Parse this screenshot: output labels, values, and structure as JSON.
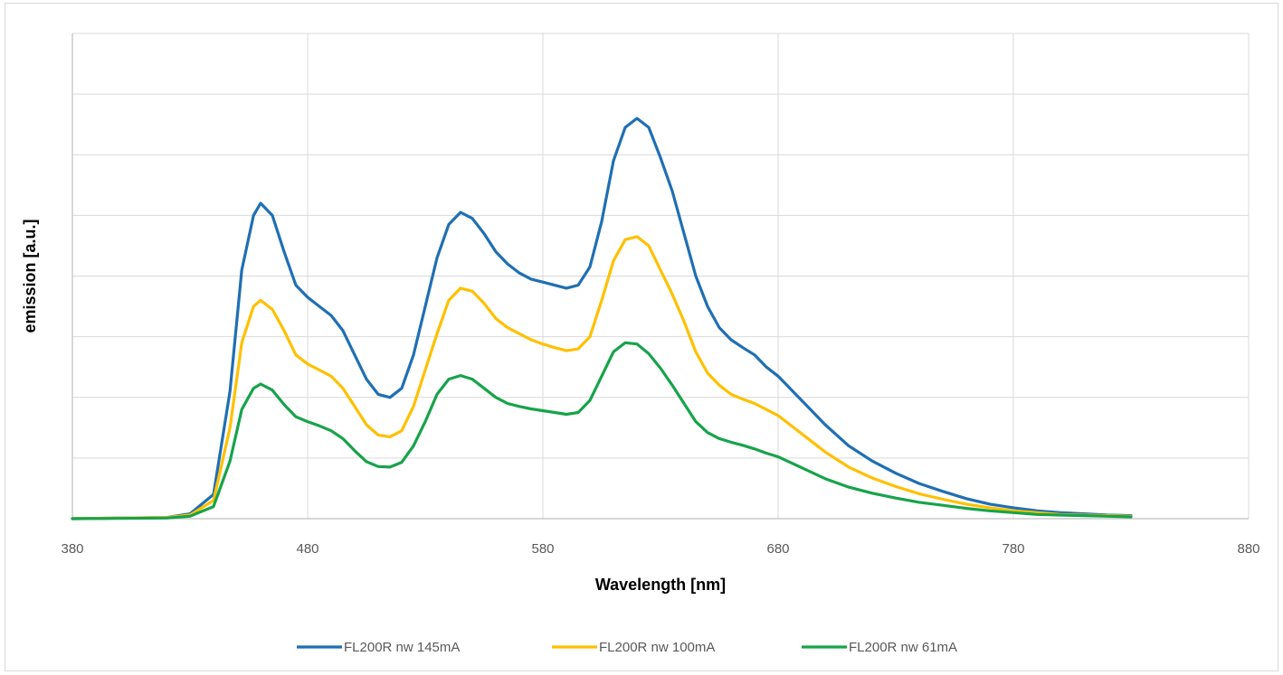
{
  "chart_data": {
    "type": "line",
    "title": "",
    "xlabel": "Wavelength [nm]",
    "ylabel": "emission [a.u.]",
    "xlim": [
      380,
      880
    ],
    "ylim": [
      0,
      8
    ],
    "x_ticks": [
      380,
      480,
      580,
      680,
      780,
      880
    ],
    "x_tick_labels": [
      "380",
      "480",
      "580",
      "680",
      "780",
      "880"
    ],
    "y_gridlines": [
      1,
      2,
      3,
      4,
      5,
      6,
      7,
      8
    ],
    "y_tick_labels_shown": false,
    "grid": true,
    "legend_position": "bottom",
    "series": [
      {
        "name": "FL200R nw 145mA",
        "color": "#1f6fb4",
        "points": [
          [
            380,
            0
          ],
          [
            420,
            0.02
          ],
          [
            430,
            0.08
          ],
          [
            440,
            0.4
          ],
          [
            447,
            2.1
          ],
          [
            452,
            4.1
          ],
          [
            457,
            5.0
          ],
          [
            460,
            5.2
          ],
          [
            465,
            5.0
          ],
          [
            470,
            4.4
          ],
          [
            475,
            3.85
          ],
          [
            480,
            3.65
          ],
          [
            485,
            3.5
          ],
          [
            490,
            3.35
          ],
          [
            495,
            3.1
          ],
          [
            500,
            2.7
          ],
          [
            505,
            2.3
          ],
          [
            510,
            2.05
          ],
          [
            515,
            2.0
          ],
          [
            520,
            2.15
          ],
          [
            525,
            2.7
          ],
          [
            530,
            3.5
          ],
          [
            535,
            4.3
          ],
          [
            540,
            4.85
          ],
          [
            545,
            5.05
          ],
          [
            550,
            4.95
          ],
          [
            555,
            4.7
          ],
          [
            560,
            4.4
          ],
          [
            565,
            4.2
          ],
          [
            570,
            4.05
          ],
          [
            575,
            3.95
          ],
          [
            580,
            3.9
          ],
          [
            585,
            3.85
          ],
          [
            590,
            3.8
          ],
          [
            595,
            3.85
          ],
          [
            600,
            4.15
          ],
          [
            605,
            4.9
          ],
          [
            610,
            5.9
          ],
          [
            615,
            6.45
          ],
          [
            620,
            6.6
          ],
          [
            625,
            6.45
          ],
          [
            630,
            5.95
          ],
          [
            635,
            5.4
          ],
          [
            640,
            4.7
          ],
          [
            645,
            4.0
          ],
          [
            650,
            3.5
          ],
          [
            655,
            3.15
          ],
          [
            660,
            2.95
          ],
          [
            665,
            2.82
          ],
          [
            670,
            2.7
          ],
          [
            675,
            2.5
          ],
          [
            680,
            2.35
          ],
          [
            690,
            1.95
          ],
          [
            700,
            1.55
          ],
          [
            710,
            1.2
          ],
          [
            720,
            0.95
          ],
          [
            730,
            0.75
          ],
          [
            740,
            0.58
          ],
          [
            750,
            0.45
          ],
          [
            760,
            0.33
          ],
          [
            770,
            0.24
          ],
          [
            780,
            0.18
          ],
          [
            790,
            0.13
          ],
          [
            800,
            0.1
          ],
          [
            810,
            0.08
          ],
          [
            820,
            0.06
          ],
          [
            830,
            0.05
          ]
        ]
      },
      {
        "name": "FL200R nw 100mA",
        "color": "#ffc000",
        "points": [
          [
            380,
            0
          ],
          [
            420,
            0.02
          ],
          [
            430,
            0.06
          ],
          [
            440,
            0.3
          ],
          [
            447,
            1.5
          ],
          [
            452,
            2.9
          ],
          [
            457,
            3.5
          ],
          [
            460,
            3.6
          ],
          [
            465,
            3.45
          ],
          [
            470,
            3.1
          ],
          [
            475,
            2.7
          ],
          [
            480,
            2.55
          ],
          [
            485,
            2.45
          ],
          [
            490,
            2.35
          ],
          [
            495,
            2.15
          ],
          [
            500,
            1.85
          ],
          [
            505,
            1.55
          ],
          [
            510,
            1.38
          ],
          [
            515,
            1.35
          ],
          [
            520,
            1.45
          ],
          [
            525,
            1.85
          ],
          [
            530,
            2.45
          ],
          [
            535,
            3.05
          ],
          [
            540,
            3.6
          ],
          [
            545,
            3.8
          ],
          [
            550,
            3.75
          ],
          [
            555,
            3.55
          ],
          [
            560,
            3.3
          ],
          [
            565,
            3.15
          ],
          [
            570,
            3.05
          ],
          [
            575,
            2.95
          ],
          [
            580,
            2.88
          ],
          [
            585,
            2.82
          ],
          [
            590,
            2.77
          ],
          [
            595,
            2.8
          ],
          [
            600,
            3.0
          ],
          [
            605,
            3.6
          ],
          [
            610,
            4.25
          ],
          [
            615,
            4.6
          ],
          [
            620,
            4.65
          ],
          [
            625,
            4.5
          ],
          [
            630,
            4.1
          ],
          [
            635,
            3.7
          ],
          [
            640,
            3.25
          ],
          [
            645,
            2.75
          ],
          [
            650,
            2.4
          ],
          [
            655,
            2.2
          ],
          [
            660,
            2.05
          ],
          [
            665,
            1.97
          ],
          [
            670,
            1.9
          ],
          [
            675,
            1.8
          ],
          [
            680,
            1.7
          ],
          [
            690,
            1.4
          ],
          [
            700,
            1.1
          ],
          [
            710,
            0.85
          ],
          [
            720,
            0.67
          ],
          [
            730,
            0.53
          ],
          [
            740,
            0.41
          ],
          [
            750,
            0.32
          ],
          [
            760,
            0.24
          ],
          [
            770,
            0.18
          ],
          [
            780,
            0.13
          ],
          [
            790,
            0.1
          ],
          [
            800,
            0.07
          ],
          [
            810,
            0.06
          ],
          [
            820,
            0.05
          ],
          [
            830,
            0.04
          ]
        ]
      },
      {
        "name": "FL200R nw 61mA",
        "color": "#17a34a",
        "points": [
          [
            380,
            0
          ],
          [
            420,
            0.01
          ],
          [
            430,
            0.04
          ],
          [
            440,
            0.2
          ],
          [
            447,
            0.95
          ],
          [
            452,
            1.8
          ],
          [
            457,
            2.15
          ],
          [
            460,
            2.22
          ],
          [
            465,
            2.12
          ],
          [
            470,
            1.88
          ],
          [
            475,
            1.68
          ],
          [
            480,
            1.6
          ],
          [
            485,
            1.53
          ],
          [
            490,
            1.45
          ],
          [
            495,
            1.32
          ],
          [
            500,
            1.12
          ],
          [
            505,
            0.94
          ],
          [
            510,
            0.86
          ],
          [
            515,
            0.85
          ],
          [
            520,
            0.93
          ],
          [
            525,
            1.2
          ],
          [
            530,
            1.6
          ],
          [
            535,
            2.05
          ],
          [
            540,
            2.3
          ],
          [
            545,
            2.36
          ],
          [
            550,
            2.3
          ],
          [
            555,
            2.15
          ],
          [
            560,
            2.0
          ],
          [
            565,
            1.9
          ],
          [
            570,
            1.85
          ],
          [
            575,
            1.81
          ],
          [
            580,
            1.78
          ],
          [
            585,
            1.75
          ],
          [
            590,
            1.72
          ],
          [
            595,
            1.75
          ],
          [
            600,
            1.95
          ],
          [
            605,
            2.35
          ],
          [
            610,
            2.75
          ],
          [
            615,
            2.9
          ],
          [
            620,
            2.88
          ],
          [
            625,
            2.72
          ],
          [
            630,
            2.48
          ],
          [
            635,
            2.2
          ],
          [
            640,
            1.9
          ],
          [
            645,
            1.6
          ],
          [
            650,
            1.42
          ],
          [
            655,
            1.32
          ],
          [
            660,
            1.26
          ],
          [
            665,
            1.21
          ],
          [
            670,
            1.15
          ],
          [
            675,
            1.08
          ],
          [
            680,
            1.02
          ],
          [
            690,
            0.84
          ],
          [
            700,
            0.66
          ],
          [
            710,
            0.52
          ],
          [
            720,
            0.42
          ],
          [
            730,
            0.34
          ],
          [
            740,
            0.27
          ],
          [
            750,
            0.22
          ],
          [
            760,
            0.17
          ],
          [
            770,
            0.13
          ],
          [
            780,
            0.1
          ],
          [
            790,
            0.07
          ],
          [
            800,
            0.06
          ],
          [
            810,
            0.05
          ],
          [
            820,
            0.04
          ],
          [
            830,
            0.03
          ]
        ]
      }
    ]
  }
}
